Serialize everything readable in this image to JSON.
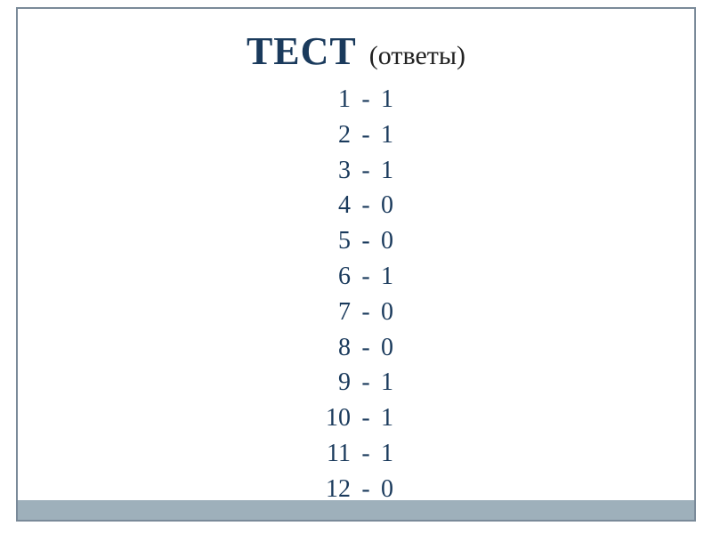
{
  "title": {
    "main": "ТЕСТ",
    "sub": "(ответы)"
  },
  "colors": {
    "frame_border": "#7a8a99",
    "bottom_bar": "#9eb0bb",
    "title_main": "#1a3a5c",
    "title_sub": "#222222",
    "text": "#1a3a5c",
    "background": "#ffffff"
  },
  "typography": {
    "title_main_fontsize": 44,
    "title_sub_fontsize": 30,
    "row_fontsize": 28,
    "font_family": "Georgia, Times New Roman, serif"
  },
  "answers": {
    "rows": [
      {
        "q": "1",
        "dash": "-",
        "a": "1"
      },
      {
        "q": "2",
        "dash": "-",
        "a": "1"
      },
      {
        "q": "3",
        "dash": "-",
        "a": "1"
      },
      {
        "q": "4",
        "dash": "-",
        "a": "0"
      },
      {
        "q": "5",
        "dash": "-",
        "a": "0"
      },
      {
        "q": "6",
        "dash": "-",
        "a": "1"
      },
      {
        "q": "7",
        "dash": "-",
        "a": "0"
      },
      {
        "q": "8",
        "dash": "-",
        "a": "0"
      },
      {
        "q": "9",
        "dash": "-",
        "a": "1"
      },
      {
        "q": "10",
        "dash": "-",
        "a": "1"
      },
      {
        "q": "11",
        "dash": "-",
        "a": "1"
      },
      {
        "q": "12",
        "dash": "-",
        "a": "0"
      }
    ]
  }
}
